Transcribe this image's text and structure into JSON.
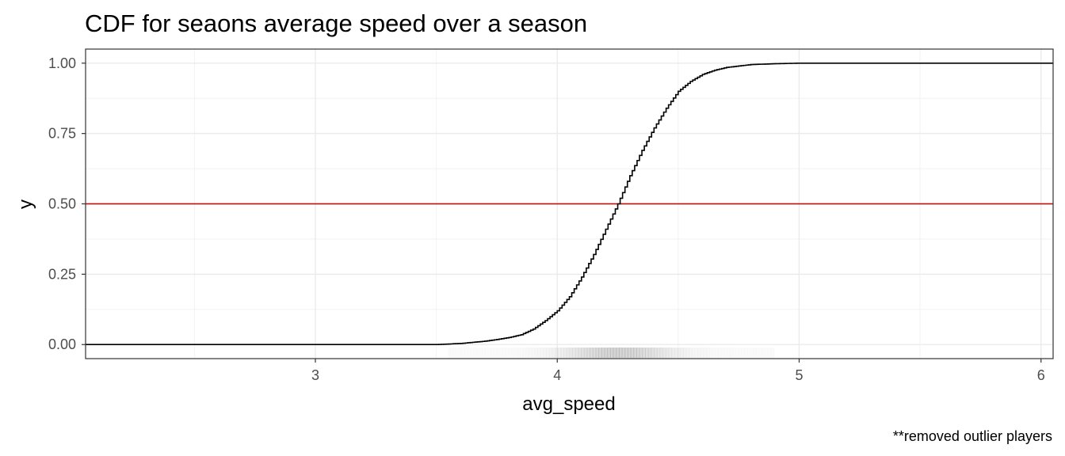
{
  "chart_data": {
    "type": "line",
    "title": "CDF for seaons average speed over a season",
    "xlabel": "avg_speed",
    "ylabel": "y",
    "caption": "**removed outlier players",
    "xlim": [
      2.05,
      6.05
    ],
    "ylim": [
      -0.05,
      1.05
    ],
    "x_ticks": [
      3,
      4,
      5,
      6
    ],
    "x_tick_labels": [
      "3",
      "4",
      "5",
      "6"
    ],
    "y_ticks": [
      0,
      0.25,
      0.5,
      0.75,
      1
    ],
    "y_tick_labels": [
      "0.00",
      "0.25",
      "0.50",
      "0.75",
      "1.00"
    ],
    "grid": true,
    "reference_line": {
      "y": 0.5,
      "color": "#cc0000"
    },
    "series": [
      {
        "type": "step-cdf",
        "color": "#000000",
        "x": [
          2.05,
          3.5,
          3.55,
          3.6,
          3.65,
          3.7,
          3.75,
          3.8,
          3.85,
          3.9,
          3.95,
          4.0,
          4.05,
          4.1,
          4.15,
          4.2,
          4.25,
          4.3,
          4.35,
          4.4,
          4.45,
          4.5,
          4.55,
          4.6,
          4.65,
          4.7,
          4.75,
          4.8,
          4.9,
          5.0,
          6.05
        ],
        "y": [
          0,
          0,
          0.002,
          0.004,
          0.008,
          0.012,
          0.018,
          0.025,
          0.035,
          0.055,
          0.085,
          0.12,
          0.17,
          0.24,
          0.32,
          0.41,
          0.5,
          0.6,
          0.69,
          0.77,
          0.84,
          0.9,
          0.935,
          0.96,
          0.975,
          0.985,
          0.99,
          0.995,
          0.998,
          1.0,
          1.0
        ]
      }
    ],
    "rug": {
      "color": "#888888",
      "x_range": [
        3.55,
        4.9
      ],
      "density_peak": 4.25
    }
  }
}
